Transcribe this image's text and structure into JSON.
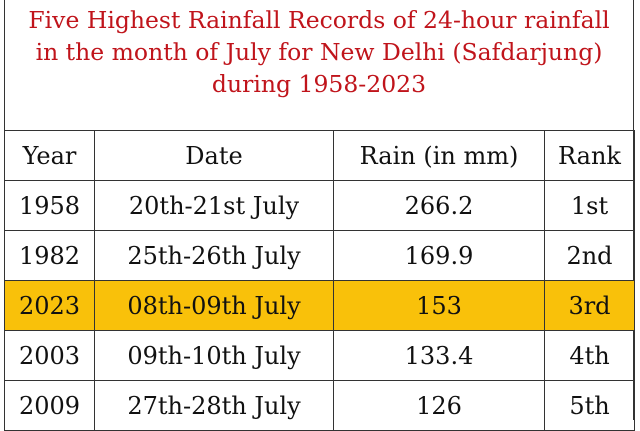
{
  "title": {
    "line1": "Five Highest Rainfall Records of 24-hour rainfall",
    "line2": "in the month of July for New Delhi (Safdarjung)",
    "line3": "during 1958-2023",
    "color": "#c0141b"
  },
  "table": {
    "headers": [
      "Year",
      "Date",
      "Rain (in mm)",
      "Rank"
    ],
    "rows": [
      [
        "1958",
        "20th-21st July",
        "266.2",
        "1st"
      ],
      [
        "1982",
        "25th-26th July",
        "169.9",
        "2nd"
      ],
      [
        "2023",
        "08th-09th July",
        "153",
        "3rd"
      ],
      [
        "2003",
        "09th-10th July",
        "133.4",
        "4th"
      ],
      [
        "2009",
        "27th-28th July",
        "126",
        "5th"
      ]
    ],
    "highlight_color": "#f9c10a"
  }
}
